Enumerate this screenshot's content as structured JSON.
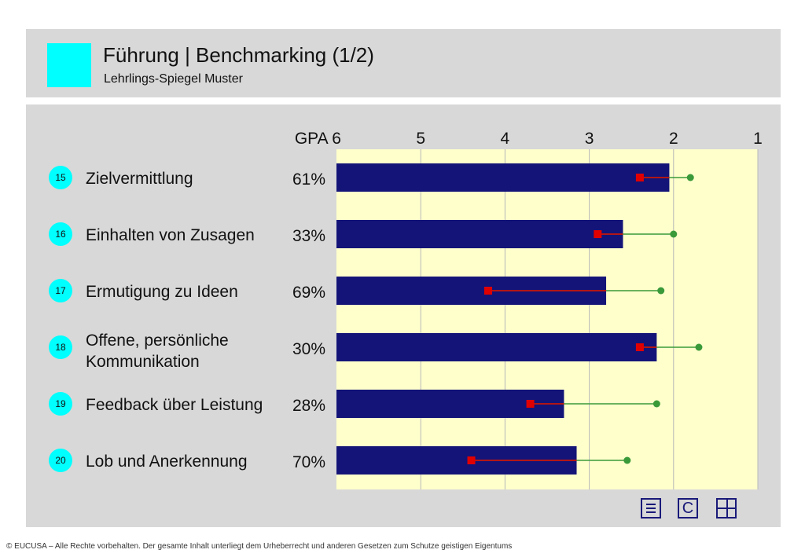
{
  "header": {
    "title": "Führung | Benchmarking (1/2)",
    "subtitle": "Lehrlings-Spiegel Muster"
  },
  "chart_data": {
    "type": "bar",
    "orientation": "horizontal",
    "x_axis": {
      "label": "GPA",
      "ticks": [
        6,
        5,
        4,
        3,
        2,
        1
      ],
      "range": [
        6,
        1
      ],
      "reversed": true
    },
    "grid": true,
    "items": [
      {
        "number": "15",
        "label": "Zielvermittlung",
        "percent": "61%",
        "bar_value": 2.05,
        "red_marker": 2.4,
        "green_marker": 1.8
      },
      {
        "number": "16",
        "label": "Einhalten von Zusagen",
        "percent": "33%",
        "bar_value": 2.6,
        "red_marker": 2.9,
        "green_marker": 2.0
      },
      {
        "number": "17",
        "label": "Ermutigung zu Ideen",
        "percent": "69%",
        "bar_value": 2.8,
        "red_marker": 4.2,
        "green_marker": 2.15
      },
      {
        "number": "18",
        "label": "Offene, persönliche Kommunikation",
        "label_lines": [
          "Offene, persönliche",
          "Kommunikation"
        ],
        "percent": "30%",
        "bar_value": 2.2,
        "red_marker": 2.4,
        "green_marker": 1.7
      },
      {
        "number": "19",
        "label": "Feedback über Leistung",
        "percent": "28%",
        "bar_value": 3.3,
        "red_marker": 3.7,
        "green_marker": 2.2
      },
      {
        "number": "20",
        "label": "Lob und Anerkennung",
        "percent": "70%",
        "bar_value": 3.15,
        "red_marker": 4.4,
        "green_marker": 2.55
      }
    ],
    "colors": {
      "bar": "#141478",
      "plot_background": "#ffffcc",
      "red_marker": "#e00000",
      "green_marker": "#3a9a3a",
      "number_badge": "#00ffff"
    }
  },
  "toolbar": {
    "list_icon": "list-icon",
    "c_label": "C",
    "grid_icon": "grid-icon"
  },
  "footer": {
    "text": "© EUCUSA – Alle Rechte vorbehalten. Der gesamte Inhalt unterliegt dem Urheberrecht und anderen Gesetzen zum Schutze geistigen Eigentums"
  }
}
